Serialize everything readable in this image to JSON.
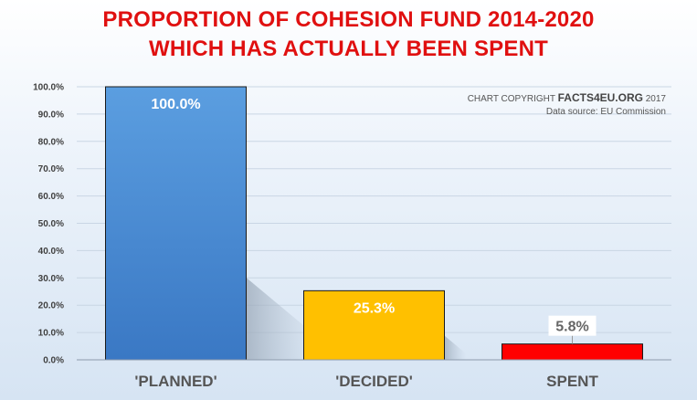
{
  "header": {
    "title_line1": "PROPORTION OF COHESION FUND 2014-2020",
    "title_line2": "WHICH HAS ACTUALLY BEEN SPENT"
  },
  "credits": {
    "copyright_prefix": "CHART COPYRIGHT",
    "copyright_brand": "FACTS4EU.ORG",
    "copyright_year": "2017",
    "source": "Data source: EU Commission"
  },
  "colors": {
    "title": "#e01010",
    "planned": "#4a8bd0",
    "decided": "#ffc000",
    "spent": "#ff0000"
  },
  "chart_data": {
    "type": "bar",
    "title": "PROPORTION OF COHESION FUND 2014-2020 WHICH HAS ACTUALLY BEEN SPENT",
    "categories": [
      "'PLANNED'",
      "'DECIDED'",
      "SPENT"
    ],
    "values": [
      100.0,
      25.3,
      5.8
    ],
    "data_labels": [
      "100.0%",
      "25.3%",
      "5.8%"
    ],
    "ylim": [
      0,
      100
    ],
    "yticks": [
      0,
      10,
      20,
      30,
      40,
      50,
      60,
      70,
      80,
      90,
      100
    ],
    "ytick_labels": [
      "0.0%",
      "10.0%",
      "20.0%",
      "30.0%",
      "40.0%",
      "50.0%",
      "60.0%",
      "70.0%",
      "80.0%",
      "90.0%",
      "100.0%"
    ],
    "xlabel": "",
    "ylabel": "",
    "grid": true,
    "legend": false
  }
}
